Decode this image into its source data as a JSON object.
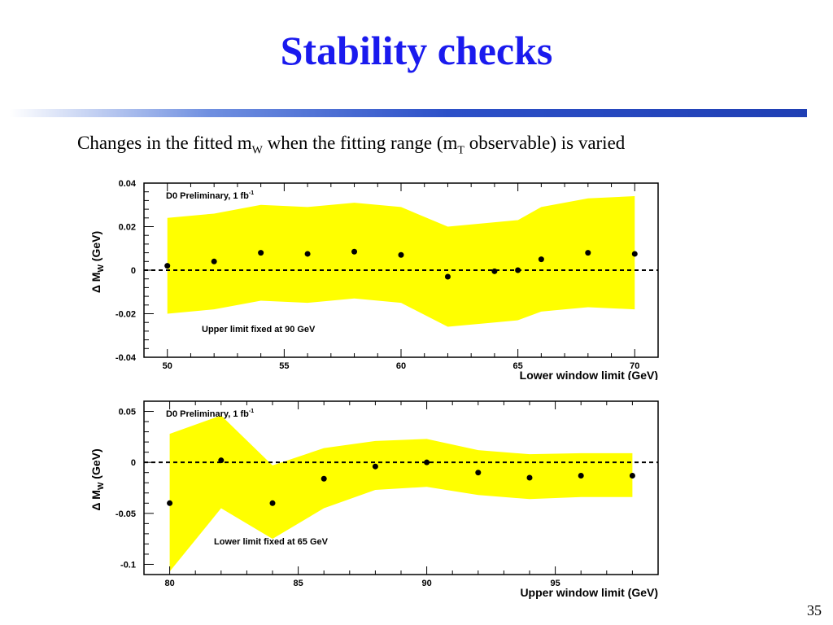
{
  "slide": {
    "title": "Stability checks",
    "subtitle_pre": "Changes in the fitted m",
    "subtitle_sub1": "W",
    "subtitle_mid": " when the fitting range (m",
    "subtitle_sub2": "T",
    "subtitle_post": " observable) is varied",
    "page_number": "35"
  },
  "colors": {
    "title": "#1a1aee",
    "band": "#ffff00",
    "points": "#000000"
  },
  "chart_data": [
    {
      "type": "scatter",
      "label": "D0 Preliminary, 1 fb",
      "label_sup": "-1",
      "note": "Upper limit fixed at 90 GeV",
      "xlabel": "Lower window limit (GeV)",
      "ylabel": "Δ M",
      "ylabel_sub": "W",
      "ylabel_unit": " (GeV)",
      "xlim": [
        49,
        71
      ],
      "ylim": [
        -0.04,
        0.04
      ],
      "xticks": [
        50,
        55,
        60,
        65,
        70
      ],
      "yticks": [
        -0.04,
        -0.02,
        0,
        0.02,
        0.04
      ],
      "ytick_labels": [
        "-0.04",
        "-0.02",
        "0",
        "0.02",
        "0.04"
      ],
      "reference_line": 0,
      "x": [
        50,
        52,
        54,
        56,
        58,
        60,
        62,
        64,
        65,
        66,
        68,
        70
      ],
      "y": [
        0.002,
        0.004,
        0.008,
        0.0075,
        0.0085,
        0.007,
        -0.003,
        -0.0005,
        0.0,
        0.005,
        0.008,
        0.0075
      ],
      "band_x": [
        50,
        52,
        54,
        56,
        58,
        60,
        62,
        64,
        65,
        66,
        68,
        70
      ],
      "band_upper": [
        0.024,
        0.026,
        0.03,
        0.029,
        0.031,
        0.029,
        0.02,
        0.022,
        0.023,
        0.029,
        0.033,
        0.034
      ],
      "band_lower": [
        -0.02,
        -0.018,
        -0.014,
        -0.015,
        -0.013,
        -0.015,
        -0.026,
        -0.024,
        -0.023,
        -0.019,
        -0.017,
        -0.018
      ]
    },
    {
      "type": "scatter",
      "label": "D0 Preliminary, 1 fb",
      "label_sup": "-1",
      "note": "Lower limit fixed at 65 GeV",
      "xlabel": "Upper window limit (GeV)",
      "ylabel": "Δ M",
      "ylabel_sub": "W",
      "ylabel_unit": " (GeV)",
      "xlim": [
        79,
        99
      ],
      "ylim": [
        -0.11,
        0.06
      ],
      "xticks": [
        80,
        85,
        90,
        95
      ],
      "yticks": [
        -0.1,
        -0.05,
        0,
        0.05
      ],
      "ytick_labels": [
        "-0.1",
        "-0.05",
        "0",
        "0.05"
      ],
      "reference_line": 0,
      "x": [
        80,
        82,
        84,
        86,
        88,
        90,
        92,
        94,
        96,
        98
      ],
      "y": [
        -0.04,
        0.002,
        -0.04,
        -0.016,
        -0.004,
        0.0,
        -0.01,
        -0.015,
        -0.013,
        -0.013
      ],
      "band_x": [
        80,
        82,
        84,
        86,
        88,
        90,
        92,
        94,
        96,
        98
      ],
      "band_upper": [
        0.028,
        0.046,
        -0.003,
        0.014,
        0.021,
        0.023,
        0.012,
        0.008,
        0.009,
        0.009
      ],
      "band_lower": [
        -0.107,
        -0.045,
        -0.075,
        -0.045,
        -0.027,
        -0.024,
        -0.032,
        -0.036,
        -0.034,
        -0.034
      ]
    }
  ]
}
